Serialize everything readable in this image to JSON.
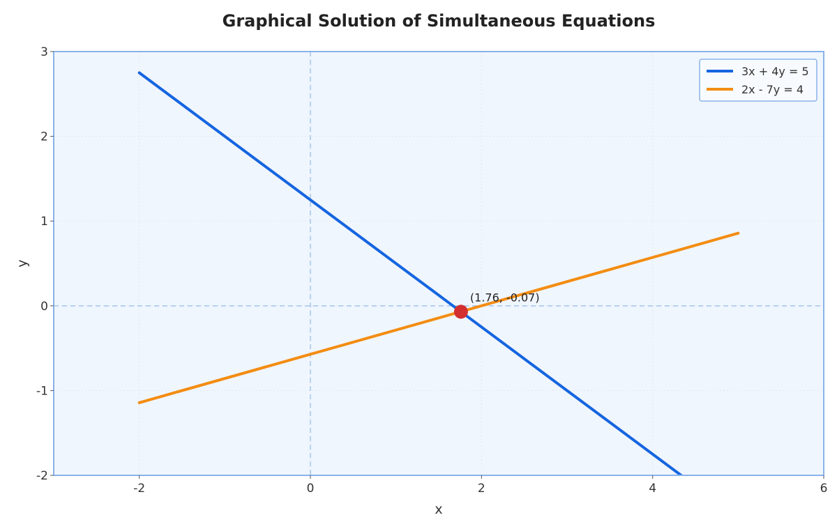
{
  "chart_data": {
    "type": "line",
    "title": "Graphical Solution of Simultaneous Equations",
    "xlabel": "x",
    "ylabel": "y",
    "xlim": [
      -3,
      6
    ],
    "ylim": [
      -2,
      3
    ],
    "xticks": [
      -2,
      0,
      2,
      4,
      6
    ],
    "yticks": [
      -2,
      -1,
      0,
      1,
      2,
      3
    ],
    "grid": true,
    "legend_position": "top-right",
    "series": [
      {
        "name": "3x + 4y = 5",
        "color": "#1565e0",
        "x": [
          -2,
          5
        ],
        "y": [
          2.75,
          -2.5
        ]
      },
      {
        "name": "2x - 7y = 4",
        "color": "#f38c12",
        "x": [
          -2,
          5
        ],
        "y": [
          -1.142857,
          0.857143
        ]
      }
    ],
    "intersection": {
      "x": 1.76,
      "y": -0.07,
      "label": "(1.76, -0.07)",
      "color": "#d32f2f"
    },
    "reference_lines": {
      "x0": true,
      "y0": true,
      "color": "#a8c8ef"
    },
    "plot_background": "#f0f6fd",
    "plot_border": "#8ab2ea"
  }
}
